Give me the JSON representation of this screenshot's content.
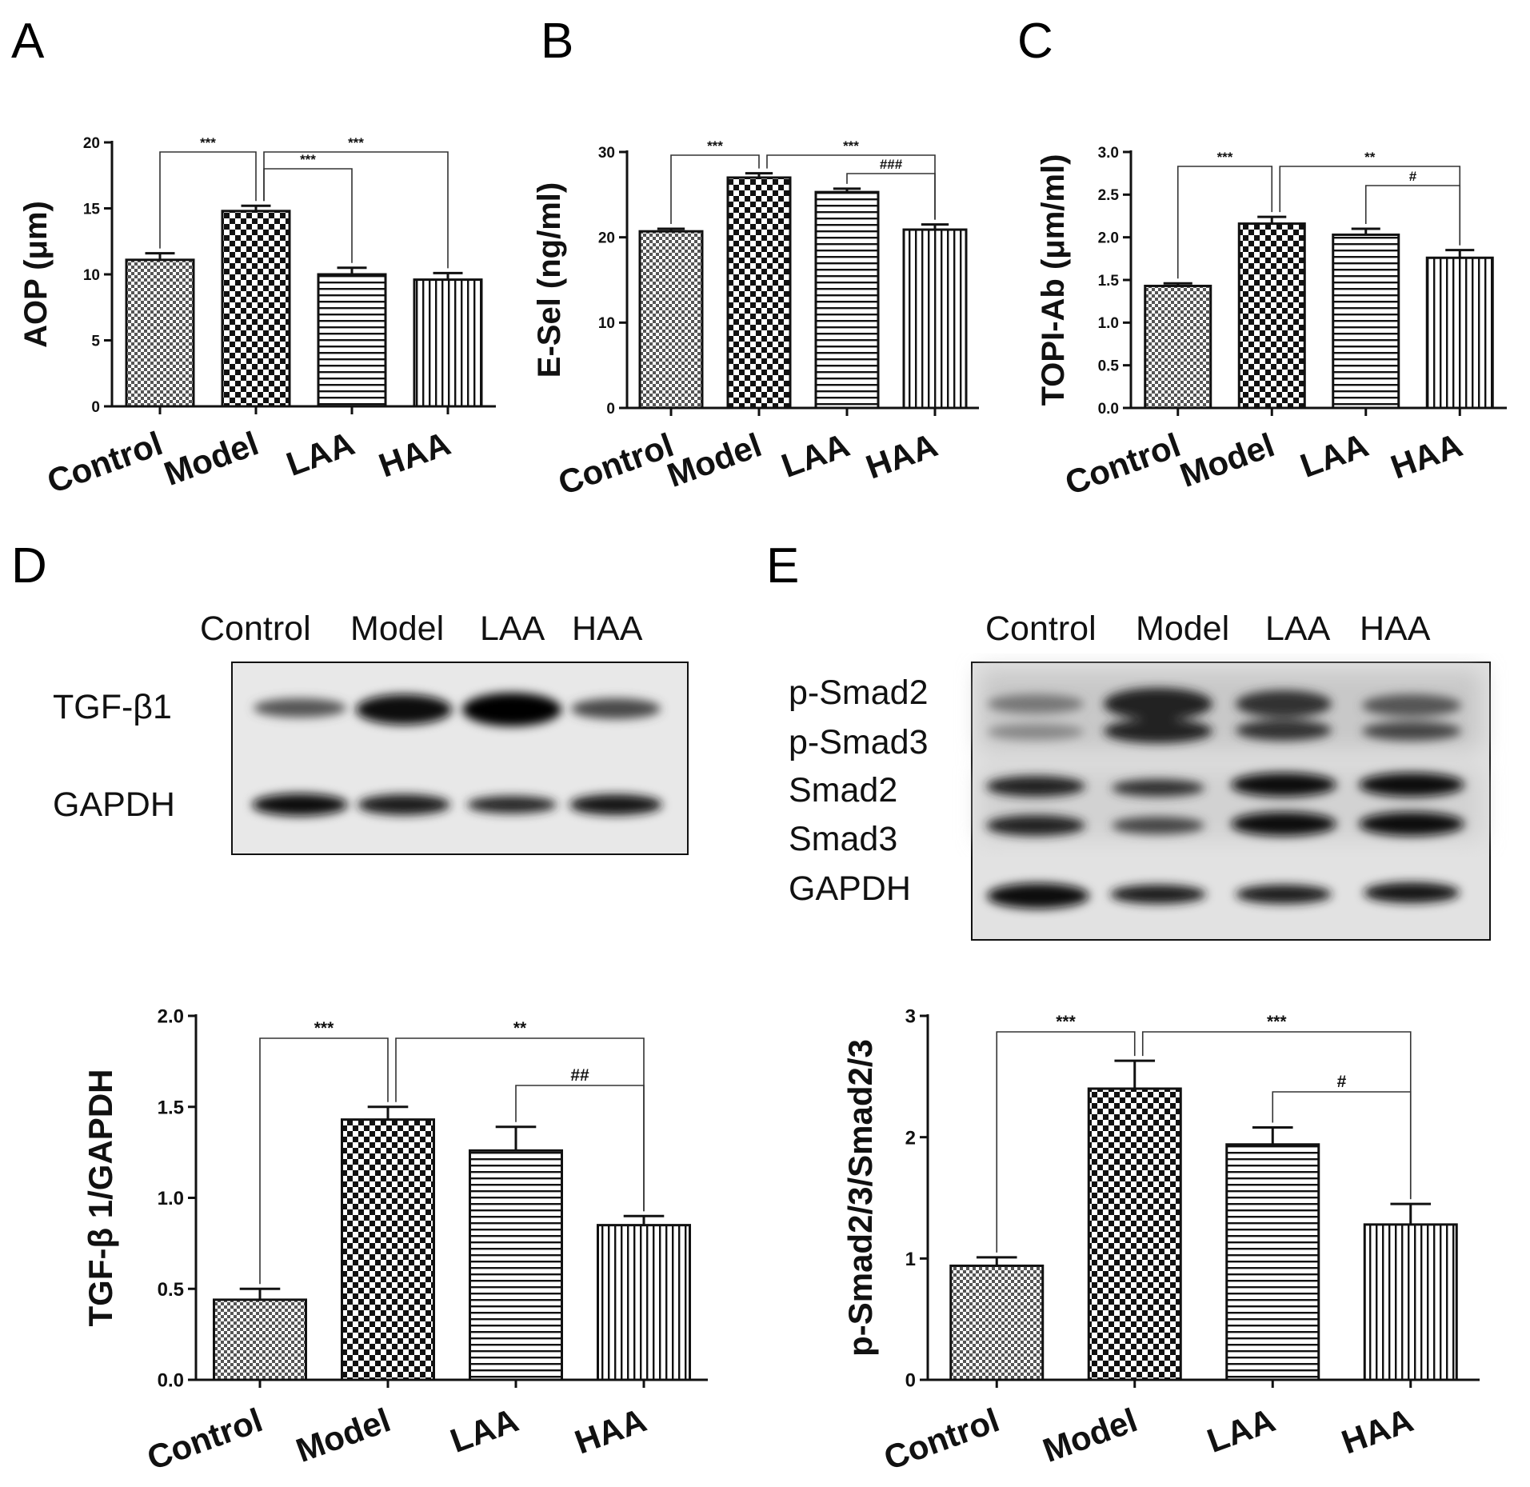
{
  "panel_letters": [
    "A",
    "B",
    "C",
    "D",
    "E"
  ],
  "blots": {
    "D": {
      "lanes": [
        "Control",
        "Model",
        "LAA",
        "HAA"
      ],
      "rows": [
        "TGF-β1",
        "GAPDH"
      ]
    },
    "E": {
      "lanes": [
        "Control",
        "Model",
        "LAA",
        "HAA"
      ],
      "rows": [
        "p-Smad2",
        "p-Smad3",
        "Smad2",
        "Smad3",
        "GAPDH"
      ]
    }
  },
  "chart_data": [
    {
      "panel": "A",
      "type": "bar",
      "categories": [
        "Control",
        "Model",
        "LAA",
        "HAA"
      ],
      "values": [
        11.1,
        14.8,
        10.0,
        9.6
      ],
      "errors": [
        0.5,
        0.4,
        0.5,
        0.5
      ],
      "ylabel": "AOP (μm)",
      "ylim": [
        0,
        20
      ],
      "yticks": [
        "0",
        "5",
        "10",
        "15",
        "20"
      ],
      "significance": [
        {
          "from": "Control",
          "to": "Model",
          "label": "***"
        },
        {
          "from": "Model",
          "to": "LAA",
          "label": "***"
        },
        {
          "from": "Model",
          "to": "HAA",
          "label": "***"
        }
      ]
    },
    {
      "panel": "B",
      "type": "bar",
      "categories": [
        "Control",
        "Model",
        "LAA",
        "HAA"
      ],
      "values": [
        20.7,
        27.0,
        25.3,
        20.9
      ],
      "errors": [
        0.3,
        0.5,
        0.4,
        0.6
      ],
      "ylabel": "E-Sel (ng/ml)",
      "ylim": [
        0,
        30
      ],
      "yticks": [
        "0",
        "10",
        "20",
        "30"
      ],
      "significance": [
        {
          "from": "Control",
          "to": "Model",
          "label": "***"
        },
        {
          "from": "Model",
          "to": "HAA",
          "label": "***"
        },
        {
          "from": "LAA",
          "to": "HAA",
          "label": "###"
        }
      ]
    },
    {
      "panel": "C",
      "type": "bar",
      "categories": [
        "Control",
        "Model",
        "LAA",
        "HAA"
      ],
      "values": [
        1.43,
        2.16,
        2.03,
        1.76
      ],
      "errors": [
        0.03,
        0.08,
        0.07,
        0.09
      ],
      "ylabel": "TOPI-Ab (μm/ml)",
      "ylim": [
        0,
        3.0
      ],
      "yticks": [
        "0.0",
        "0.5",
        "1.0",
        "1.5",
        "2.0",
        "2.5",
        "3.0"
      ],
      "significance": [
        {
          "from": "Control",
          "to": "Model",
          "label": "***"
        },
        {
          "from": "Model",
          "to": "HAA",
          "label": "**"
        },
        {
          "from": "LAA",
          "to": "HAA",
          "label": "#"
        }
      ]
    },
    {
      "panel": "D",
      "type": "bar",
      "categories": [
        "Control",
        "Model",
        "LAA",
        "HAA"
      ],
      "values": [
        0.44,
        1.43,
        1.26,
        0.85
      ],
      "errors": [
        0.06,
        0.07,
        0.13,
        0.05
      ],
      "ylabel": "TGF-β 1/GAPDH",
      "ylim": [
        0,
        2.0
      ],
      "yticks": [
        "0.0",
        "0.5",
        "1.0",
        "1.5",
        "2.0"
      ],
      "significance": [
        {
          "from": "Control",
          "to": "Model",
          "label": "***"
        },
        {
          "from": "Model",
          "to": "HAA",
          "label": "**"
        },
        {
          "from": "LAA",
          "to": "HAA",
          "label": "##"
        }
      ]
    },
    {
      "panel": "E",
      "type": "bar",
      "categories": [
        "Control",
        "Model",
        "LAA",
        "HAA"
      ],
      "values": [
        0.94,
        2.4,
        1.94,
        1.28
      ],
      "errors": [
        0.07,
        0.23,
        0.14,
        0.17
      ],
      "ylabel": "p-Smad2/3/Smad2/3",
      "ylim": [
        0,
        3
      ],
      "yticks": [
        "0",
        "1",
        "2",
        "3"
      ],
      "significance": [
        {
          "from": "Control",
          "to": "Model",
          "label": "***"
        },
        {
          "from": "Model",
          "to": "HAA",
          "label": "***"
        },
        {
          "from": "LAA",
          "to": "HAA",
          "label": "#"
        }
      ]
    }
  ]
}
